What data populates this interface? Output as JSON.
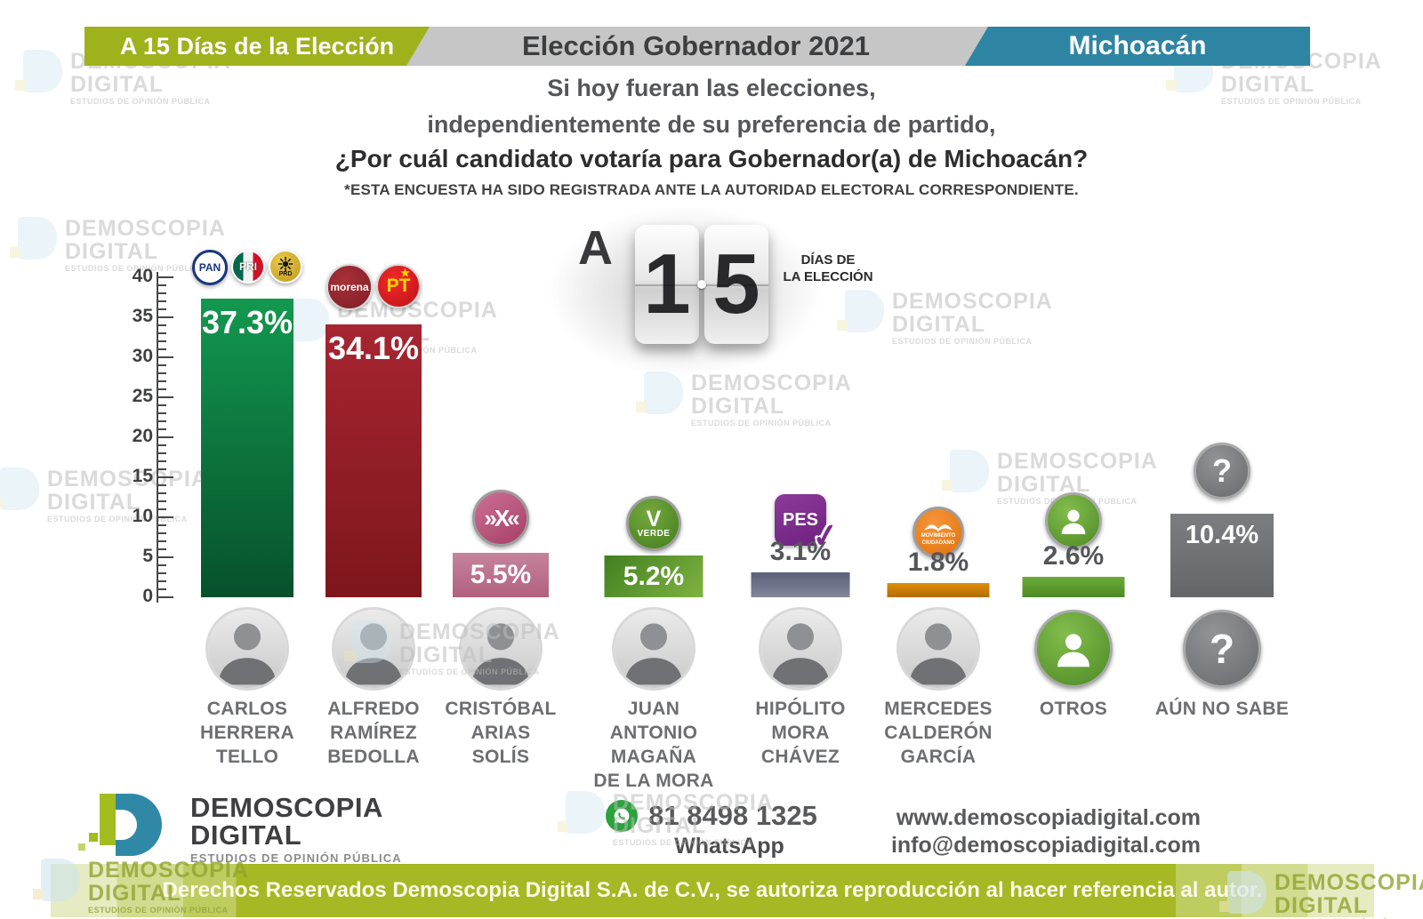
{
  "header": {
    "left_badge": "A 15 Días de la Elección",
    "title": "Elección Gobernador 2021",
    "right_badge": "Michoacán",
    "colors": {
      "left_bg": "#9fb21c",
      "title_bg": "#c6c6c6",
      "right_bg": "#2e85a3"
    }
  },
  "intro": {
    "line1": "Si hoy fueran las elecciones,",
    "line2": "independientemente de su preferencia de partido,",
    "question": "¿Por cuál candidato votaría para Gobernador(a) de Michoacán?",
    "disclaimer": "*ESTA ENCUESTA HA SIDO REGISTRADA ANTE LA AUTORIDAD ELECTORAL CORRESPONDIENTE."
  },
  "countdown": {
    "prefix": "A",
    "digit1": "1",
    "digit2": "5",
    "caption_line1": "DÍAS DE",
    "caption_line2": "LA ELECCIÓN"
  },
  "watermark": {
    "line1": "DEMOSCOPIA",
    "line2": "DIGITAL",
    "line3": "ESTUDIOS DE OPINIÓN PÚBLICA"
  },
  "party_logos": {
    "pan": "PAN",
    "pri": "PRI",
    "prd": "PRD",
    "morena": "morena",
    "pt": "PT",
    "pt_star": "★",
    "fxm": "»X«",
    "verde_letter": "V",
    "verde": "VERDE",
    "pes": "PES",
    "pes_check": "✓",
    "mc_line1": "MOVIMIENTO",
    "mc_line2": "CIUDADANO",
    "question_mark": "?"
  },
  "candidates": [
    {
      "label": "37.3%",
      "name_lines": [
        "CARLOS",
        "HERRERA",
        "TELLO"
      ]
    },
    {
      "label": "34.1%",
      "name_lines": [
        "ALFREDO",
        "RAMÍREZ",
        "BEDOLLA"
      ]
    },
    {
      "label": "5.5%",
      "name_lines": [
        "CRISTÓBAL",
        "ARIAS",
        "SOLÍS"
      ]
    },
    {
      "label": "5.2%",
      "name_lines": [
        "JUAN",
        "ANTONIO",
        "MAGAÑA",
        "DE LA MORA"
      ]
    },
    {
      "label": "3.1%",
      "name_lines": [
        "HIPÓLITO",
        "MORA",
        "CHÁVEZ"
      ]
    },
    {
      "label": "1.8%",
      "name_lines": [
        "MERCEDES",
        "CALDERÓN",
        "GARCÍA"
      ]
    },
    {
      "label": "2.6%",
      "name_lines": [
        "OTROS"
      ]
    },
    {
      "label": "10.4%",
      "name_lines": [
        "AÚN NO SABE"
      ]
    }
  ],
  "chart_data": {
    "type": "bar",
    "title": "¿Por cuál candidato votaría para Gobernador(a) de Michoacán?",
    "categories": [
      "CARLOS HERRERA TELLO",
      "ALFREDO RAMÍREZ BEDOLLA",
      "CRISTÓBAL ARIAS SOLÍS",
      "JUAN ANTONIO MAGAÑA DE LA MORA",
      "HIPÓLITO MORA CHÁVEZ",
      "MERCEDES CALDERÓN GARCÍA",
      "OTROS",
      "AÚN NO SABE"
    ],
    "values": [
      37.3,
      34.1,
      5.5,
      5.2,
      3.1,
      1.8,
      2.6,
      10.4
    ],
    "value_labels": [
      "37.3%",
      "34.1%",
      "5.5%",
      "5.2%",
      "3.1%",
      "1.8%",
      "2.6%",
      "10.4%"
    ],
    "parties_per_bar": [
      [
        "PAN",
        "PRI",
        "PRD"
      ],
      [
        "MORENA",
        "PT"
      ],
      [
        "Fuerza por México"
      ],
      [
        "Partido Verde"
      ],
      [
        "PES"
      ],
      [
        "Movimiento Ciudadano"
      ],
      [],
      []
    ],
    "bar_colors": [
      "#0e8f4c",
      "#96202a",
      "#bd6f8d",
      "#5d9733",
      "#6b7089",
      "#d8850a",
      "#5f9c2f",
      "#707274"
    ],
    "xlabel": "",
    "ylabel": "",
    "ylim": [
      0,
      40
    ],
    "yticks": [
      0,
      5,
      10,
      15,
      20,
      25,
      30,
      35,
      40
    ],
    "grid": false,
    "legend": false
  },
  "footer": {
    "brand_line1": "DEMOSCOPIA",
    "brand_line2": "DIGITAL",
    "brand_line3": "ESTUDIOS DE OPINIÓN PÚBLICA",
    "whatsapp_number": "81 8498 1325",
    "whatsapp_label": "WhatsApp",
    "website": "www.demoscopiadigital.com",
    "email": "info@demoscopiadigital.com"
  },
  "copyright": "Derechos Reservados Demoscopia Digital S.A. de C.V., se autoriza reproducción al hacer referencia al autor."
}
